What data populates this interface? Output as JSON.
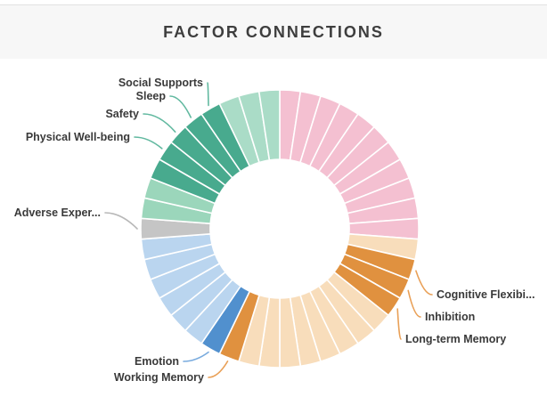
{
  "header": {
    "title": "FACTOR CONNECTIONS"
  },
  "chart_data": {
    "type": "pie",
    "subtype": "donut",
    "title": "FACTOR CONNECTIONS",
    "segments_total": 42,
    "equal_segment_angle_deg": 8.57,
    "start_angle": "12 o'clock, clockwise",
    "colors": {
      "pink": "#F4C0D1",
      "peach": "#F8DDBB",
      "orange": "#E0913F",
      "blue": "#5190CE",
      "lightblue": "#BAD5EF",
      "gray": "#C5C5C5",
      "lightgreen": "#9BD6BB",
      "teal": "#48AA8E",
      "mint": "#AADCC7"
    },
    "label_line_colors": {
      "orange": "#E9A057",
      "blue": "#79ABDE",
      "gray": "#B8B8B8",
      "teal": "#62B9A0"
    },
    "sequence": [
      {
        "color_key": "pink",
        "count": 11
      },
      {
        "color_key": "peach",
        "count": 1
      },
      {
        "color_key": "orange",
        "count": 1,
        "label": "Cognitive Flexibi..."
      },
      {
        "color_key": "orange",
        "count": 1,
        "label": "Inhibition"
      },
      {
        "color_key": "orange",
        "count": 1,
        "label": "Long-term Memory"
      },
      {
        "color_key": "peach",
        "count": 8
      },
      {
        "color_key": "orange",
        "count": 1,
        "label": "Working Memory"
      },
      {
        "color_key": "blue",
        "count": 1,
        "label": "Emotion"
      },
      {
        "color_key": "lightblue",
        "count": 6
      },
      {
        "color_key": "gray",
        "count": 1,
        "label": "Adverse Exper..."
      },
      {
        "color_key": "lightgreen",
        "count": 2
      },
      {
        "color_key": "teal",
        "count": 1
      },
      {
        "color_key": "teal",
        "count": 1,
        "label": "Physical Well-being"
      },
      {
        "color_key": "teal",
        "count": 1,
        "label": "Safety"
      },
      {
        "color_key": "teal",
        "count": 1,
        "label": "Sleep"
      },
      {
        "color_key": "teal",
        "count": 1,
        "label": "Social Supports"
      },
      {
        "color_key": "mint",
        "count": 3
      }
    ],
    "visible_labels": [
      "Social Supports",
      "Sleep",
      "Safety",
      "Physical Well-being",
      "Adverse Exper...",
      "Emotion",
      "Working Memory",
      "Long-term Memory",
      "Inhibition",
      "Cognitive Flexibi..."
    ]
  }
}
